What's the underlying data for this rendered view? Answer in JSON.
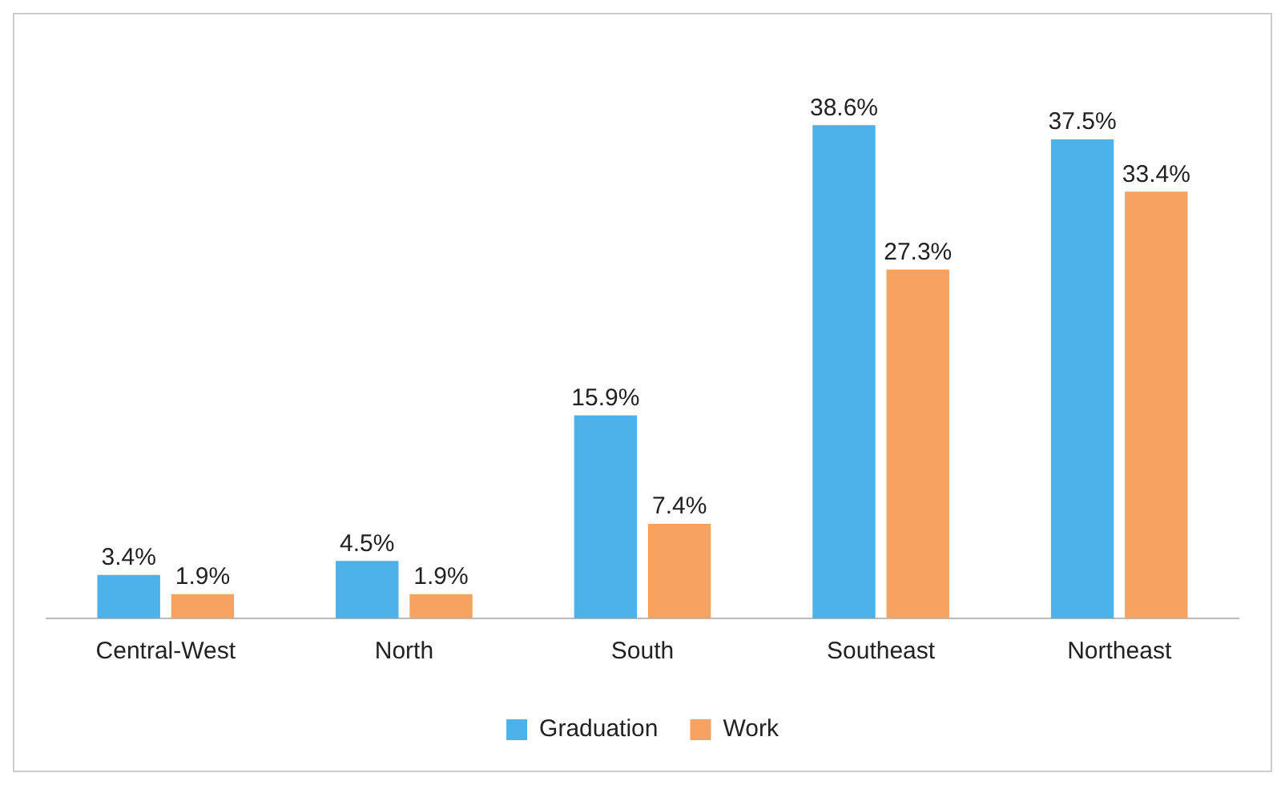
{
  "chart_data": {
    "type": "bar",
    "categories": [
      "Central-West",
      "North",
      "South",
      "Southeast",
      "Northeast"
    ],
    "series": [
      {
        "name": "Graduation",
        "color": "#4db2ea",
        "values": [
          3.4,
          4.5,
          15.9,
          38.6,
          37.5
        ],
        "value_labels": [
          "3.4%",
          "4.5%",
          "15.9%",
          "38.6%",
          "37.5%"
        ]
      },
      {
        "name": "Work",
        "color": "#f8a261",
        "values": [
          1.9,
          1.9,
          7.4,
          27.3,
          33.4
        ],
        "value_labels": [
          "1.9%",
          "1.9%",
          "7.4%",
          "27.3%",
          "33.4%"
        ]
      }
    ],
    "legend": "bottom",
    "grid": false
  }
}
